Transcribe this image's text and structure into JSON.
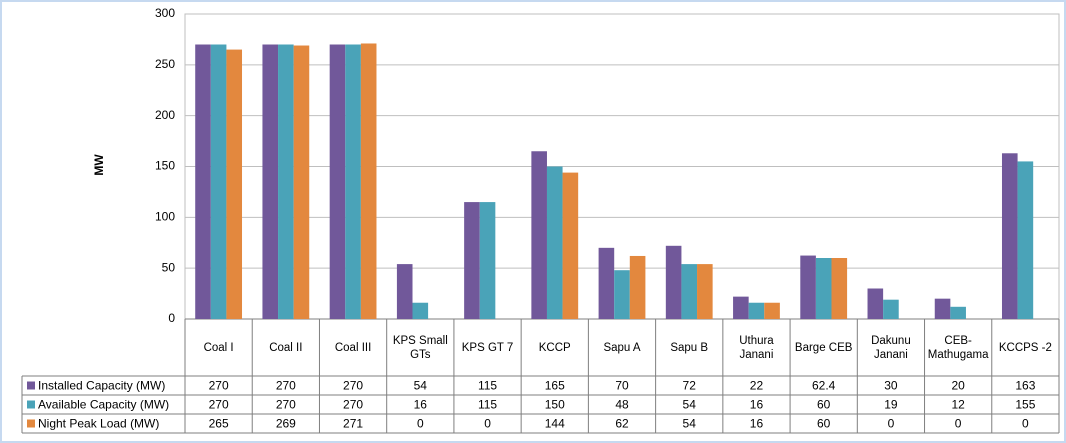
{
  "chart_data": {
    "type": "bar",
    "y_label": "MW",
    "categories": [
      "Coal I",
      "Coal II",
      "Coal III",
      "KPS Small GTs",
      "KPS GT 7",
      "KCCP",
      "Sapu A",
      "Sapu B",
      "Uthura Janani",
      "Barge CEB",
      "Dakunu Janani",
      "CEB-Mathugama",
      "KCCPS -2"
    ],
    "series": [
      {
        "name": "Installed Capacity (MW)",
        "color": "#71589a",
        "values": [
          270,
          270,
          270,
          54,
          115,
          165,
          70,
          72,
          22,
          62.4,
          30,
          20,
          163
        ]
      },
      {
        "name": "Available Capacity (MW)",
        "color": "#4aa3b8",
        "values": [
          270,
          270,
          270,
          16,
          115,
          150,
          48,
          54,
          16,
          60,
          19,
          12,
          155
        ]
      },
      {
        "name": "Night Peak Load (MW)",
        "color": "#e3883e",
        "values": [
          265,
          269,
          271,
          0,
          0,
          144,
          62,
          54,
          16,
          60,
          0,
          0,
          0
        ]
      }
    ],
    "ylim": [
      0,
      300
    ],
    "yticks": [
      0,
      50,
      100,
      150,
      200,
      250,
      300
    ],
    "grid": true
  }
}
